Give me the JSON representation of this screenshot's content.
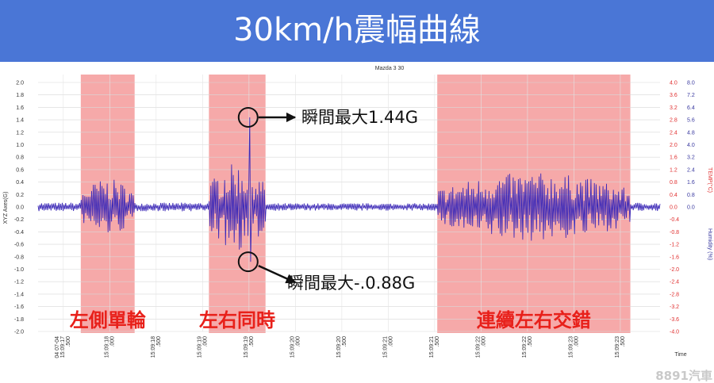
{
  "banner": {
    "title": "30km/h震幅曲線"
  },
  "watermark": "8891汽車",
  "chart_data": {
    "type": "line",
    "title": "Mazda 3 30",
    "xlabel": "Time",
    "ylabel_left": "XYZ Axes(G)",
    "ylabel_right_1": "TEMP(°C)",
    "ylabel_right_2": "Humidity (%)",
    "ylim": [
      -2.0,
      2.0
    ],
    "yticks_left": [
      "2.0",
      "1.8",
      "1.6",
      "1.4",
      "1.2",
      "1.0",
      "0.8",
      "0.6",
      "0.4",
      "0.2",
      "0.0",
      "-0.2",
      "-0.4",
      "-0.6",
      "-0.8",
      "-1.0",
      "-1.2",
      "-1.4",
      "-1.6",
      "-1.8",
      "-2.0"
    ],
    "yticks_temp": [
      "4.0",
      "3.6",
      "3.2",
      "2.8",
      "2.4",
      "2.0",
      "1.6",
      "1.2",
      "0.8",
      "0.4",
      "0.0",
      "-0.4",
      "-0.8",
      "-1.2",
      "-1.6",
      "-2.0",
      "-2.4",
      "-2.8",
      "-3.2",
      "-3.6",
      "-4.0"
    ],
    "yticks_humidity": [
      "8.0",
      "7.2",
      "6.4",
      "5.6",
      "4.8",
      "4.0",
      "3.2",
      "2.4",
      "1.6",
      "0.8",
      "0.0"
    ],
    "xticks": [
      [
        "04 07-04",
        "15:09:17",
        ".500"
      ],
      [
        "15:09:18",
        ".000"
      ],
      [
        "15:09:18",
        ".500"
      ],
      [
        "15:09:19",
        ".000"
      ],
      [
        "15:09:19",
        ".500"
      ],
      [
        "15:09:20",
        ".000"
      ],
      [
        "15:09:20",
        ".500"
      ],
      [
        "15:09:21",
        ".000"
      ],
      [
        "15:09:21",
        ".500"
      ],
      [
        "15:09:22",
        ".000"
      ],
      [
        "15:09:22",
        ".500"
      ],
      [
        "15:09:23",
        ".000"
      ],
      [
        "15:09:23",
        ".500"
      ]
    ],
    "grid": true,
    "series": [
      {
        "color": "#3d2ab8",
        "segments": [
          {
            "kind": "idle",
            "t": [
              0.0,
              0.46
            ],
            "amplitude": 0.07
          },
          {
            "kind": "event",
            "t": [
              0.46,
              1.04
            ],
            "amplitude": 0.45,
            "peak": 0.65
          },
          {
            "kind": "idle",
            "t": [
              1.04,
              1.84
            ],
            "amplitude": 0.07
          },
          {
            "kind": "event",
            "t": [
              1.84,
              2.45
            ],
            "amplitude": 0.7,
            "peak": 1.44,
            "trough": -0.88
          },
          {
            "kind": "idle",
            "t": [
              2.45,
              4.3
            ],
            "amplitude": 0.06
          },
          {
            "kind": "event",
            "t": [
              4.3,
              6.38
            ],
            "amplitude": 0.55,
            "peak": 0.85
          },
          {
            "kind": "idle",
            "t": [
              6.38,
              6.7
            ],
            "amplitude": 0.07
          }
        ]
      }
    ],
    "highlight_regions": [
      {
        "t": [
          0.46,
          1.04
        ],
        "label": "左側單輪"
      },
      {
        "t": [
          1.84,
          2.45
        ],
        "label": "左右同時"
      },
      {
        "t": [
          4.3,
          6.38
        ],
        "label": "連續左右交錯"
      }
    ],
    "annotations": [
      {
        "text": "瞬間最大1.44G",
        "t": 2.28,
        "value": 1.44
      },
      {
        "text": "瞬間最大-.0.88G",
        "t": 2.28,
        "value": -0.88
      }
    ],
    "colors": {
      "highlight": "#f59a9a",
      "line": "#3d2ab8",
      "temp_axis": "#e03030",
      "humidity_axis": "#3a3aa0"
    }
  }
}
